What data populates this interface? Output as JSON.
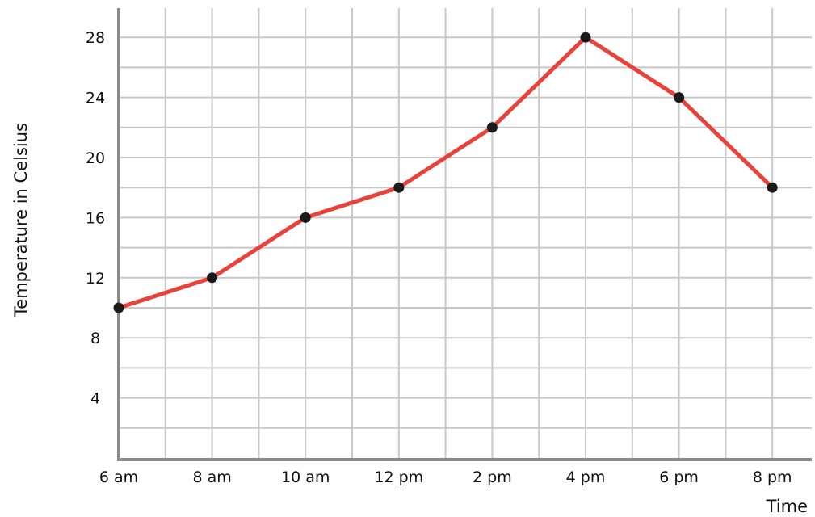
{
  "chart_data": {
    "type": "line",
    "title": "",
    "xlabel": "Time",
    "ylabel": "Temperature in Celsius",
    "categories": [
      "6 am",
      "8 am",
      "10 am",
      "12 pm",
      "2 pm",
      "4 pm",
      "6 pm",
      "8 pm"
    ],
    "series": [
      {
        "values": [
          10,
          12,
          16,
          18,
          22,
          28,
          24,
          18
        ]
      }
    ],
    "ylim": [
      0,
      30
    ],
    "y_ticks": [
      "4",
      "8",
      "12",
      "16",
      "20",
      "24",
      "28"
    ],
    "y_tick_values": [
      4,
      8,
      12,
      16,
      20,
      24,
      28
    ],
    "grid": true,
    "colors": {
      "line": "#e8423a",
      "marker": "#1a1a1a",
      "grid": "#c8c8c8",
      "axis": "#8a8a8a"
    }
  }
}
